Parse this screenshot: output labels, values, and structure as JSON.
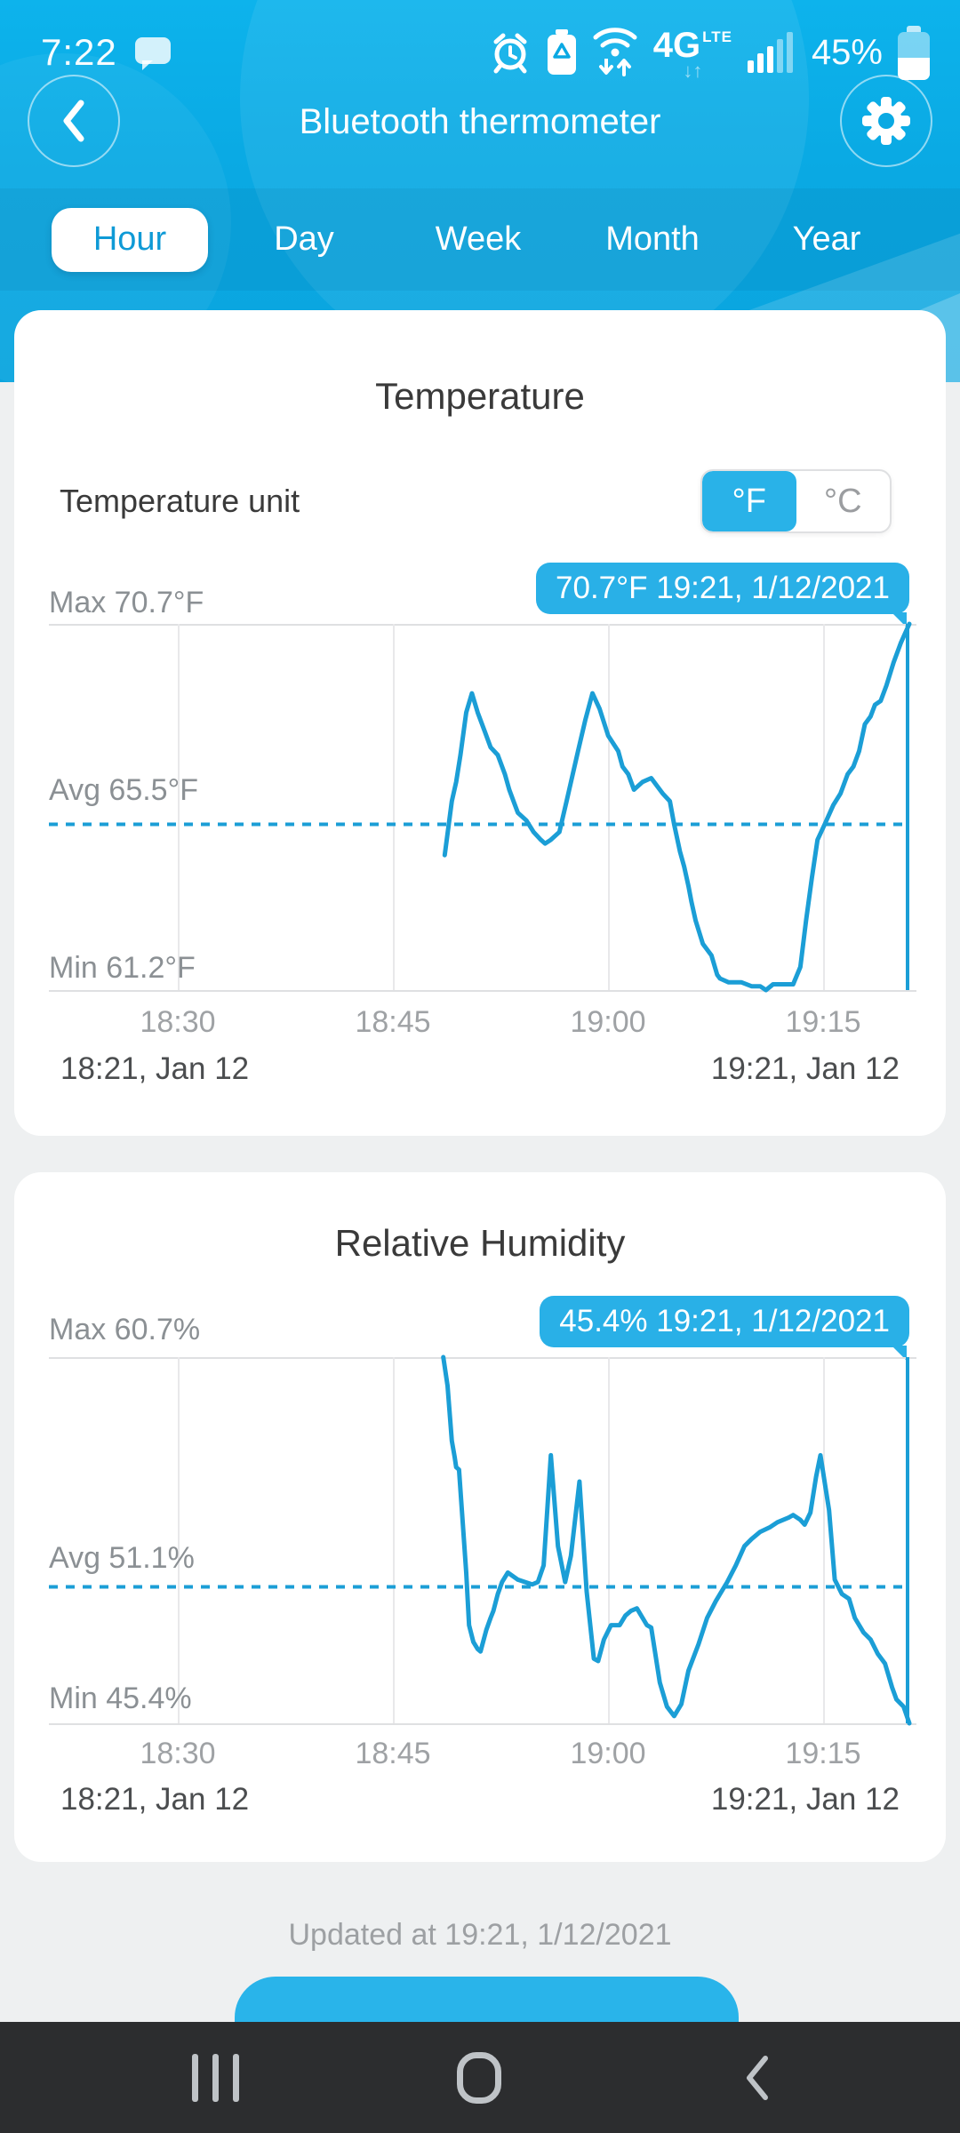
{
  "colors": {
    "hero_blue": "#0aa9e3",
    "accent_blue": "#29b2e8",
    "line_blue": "#1b9ed6",
    "active_tab_text": "#0f9ad6",
    "gridline": "#e8e8ea",
    "navbar_bg": "#2c2d2f"
  },
  "status_bar": {
    "time": "7:22",
    "battery_percent": "45%",
    "network_type": "4G",
    "network_sub": "LTE",
    "down_up_arrows": "↓↑",
    "icons": [
      "chat-bubble-icon",
      "alarm-icon",
      "battery-saver-icon",
      "wifi-icon",
      "4g-lte-icon",
      "signal-icon",
      "battery-icon"
    ]
  },
  "header": {
    "title": "Bluetooth thermometer"
  },
  "tabs": {
    "items": [
      {
        "label": "Hour",
        "active": true
      },
      {
        "label": "Day",
        "active": false
      },
      {
        "label": "Week",
        "active": false
      },
      {
        "label": "Month",
        "active": false
      },
      {
        "label": "Year",
        "active": false
      }
    ]
  },
  "temperature_card": {
    "title": "Temperature",
    "unit_label": "Temperature unit",
    "unit_toggle": {
      "fahrenheit": "°F",
      "celsius": "°C",
      "selected": "fahrenheit"
    },
    "tooltip": "70.7°F 19:21,  1/12/2021",
    "max_label": "Max 70.7°F",
    "avg_label": "Avg 65.5°F",
    "min_label": "Min 61.2°F",
    "x_ticks": [
      "18:30",
      "18:45",
      "19:00",
      "19:15"
    ],
    "range_start": "18:21,  Jan 12",
    "range_end": "19:21,  Jan 12"
  },
  "humidity_card": {
    "title": "Relative Humidity",
    "tooltip": "45.4% 19:21,  1/12/2021",
    "max_label": "Max 60.7%",
    "avg_label": "Avg 51.1%",
    "min_label": "Min 45.4%",
    "x_ticks": [
      "18:30",
      "18:45",
      "19:00",
      "19:15"
    ],
    "range_start": "18:21,  Jan 12",
    "range_end": "19:21,  Jan 12"
  },
  "footer": {
    "updated": "Updated at 19:21,  1/12/2021"
  },
  "nav_bar": {
    "icons": [
      "recents-icon",
      "home-icon",
      "back-icon"
    ]
  },
  "chart_data": [
    {
      "type": "line",
      "title": "Temperature",
      "unit": "°F",
      "ylim": [
        61.2,
        70.7
      ],
      "max": 70.7,
      "avg": 65.5,
      "min": 61.2,
      "latest": {
        "value": "70.7°F",
        "time": "19:21",
        "date": "1/12/2021"
      },
      "x_range_minutes": [
        0,
        60
      ],
      "x_start_label": "18:21, Jan 12",
      "x_end_label": "19:21, Jan 12",
      "tick_minutes": [
        9,
        24,
        39,
        54
      ],
      "tick_labels": [
        "18:30",
        "18:45",
        "19:00",
        "19:15"
      ],
      "grid": true,
      "legend": "none",
      "line_color": "#1b9ed6",
      "series": [
        {
          "name": "Temperature (°F)",
          "points": [
            [
              27.6,
              64.7
            ],
            [
              28.1,
              66.1
            ],
            [
              28.4,
              66.6
            ],
            [
              28.7,
              67.3
            ],
            [
              29.1,
              68.4
            ],
            [
              29.5,
              68.9
            ],
            [
              29.9,
              68.4
            ],
            [
              30.4,
              67.9
            ],
            [
              30.8,
              67.5
            ],
            [
              31.3,
              67.3
            ],
            [
              31.8,
              66.8
            ],
            [
              32.1,
              66.4
            ],
            [
              32.5,
              66.0
            ],
            [
              32.7,
              65.8
            ],
            [
              33.3,
              65.6
            ],
            [
              33.8,
              65.3
            ],
            [
              34.3,
              65.1
            ],
            [
              34.6,
              65.0
            ],
            [
              35.0,
              65.1
            ],
            [
              35.6,
              65.3
            ],
            [
              36.1,
              66.1
            ],
            [
              36.9,
              67.4
            ],
            [
              37.4,
              68.2
            ],
            [
              37.9,
              68.9
            ],
            [
              38.4,
              68.5
            ],
            [
              39.0,
              67.8
            ],
            [
              39.7,
              67.4
            ],
            [
              40.0,
              67.0
            ],
            [
              40.4,
              66.8
            ],
            [
              40.8,
              66.4
            ],
            [
              41.4,
              66.6
            ],
            [
              42.0,
              66.7
            ],
            [
              42.8,
              66.3
            ],
            [
              43.3,
              66.1
            ],
            [
              43.6,
              65.5
            ],
            [
              44.0,
              64.8
            ],
            [
              44.3,
              64.4
            ],
            [
              44.6,
              63.9
            ],
            [
              44.8,
              63.5
            ],
            [
              45.1,
              63.0
            ],
            [
              45.6,
              62.4
            ],
            [
              46.2,
              62.1
            ],
            [
              46.6,
              61.6
            ],
            [
              46.8,
              61.5
            ],
            [
              47.4,
              61.4
            ],
            [
              48.3,
              61.4
            ],
            [
              49.0,
              61.3
            ],
            [
              49.6,
              61.3
            ],
            [
              50.0,
              61.2
            ],
            [
              50.5,
              61.35
            ],
            [
              51.1,
              61.35
            ],
            [
              51.9,
              61.35
            ],
            [
              52.4,
              61.8
            ],
            [
              52.8,
              63.0
            ],
            [
              53.2,
              64.1
            ],
            [
              53.6,
              65.1
            ],
            [
              54.1,
              65.5
            ],
            [
              54.7,
              66.0
            ],
            [
              55.2,
              66.3
            ],
            [
              55.7,
              66.8
            ],
            [
              56.1,
              67.0
            ],
            [
              56.5,
              67.4
            ],
            [
              56.9,
              68.1
            ],
            [
              57.3,
              68.3
            ],
            [
              57.6,
              68.6
            ],
            [
              58.0,
              68.7
            ],
            [
              58.4,
              69.1
            ],
            [
              58.9,
              69.7
            ],
            [
              59.4,
              70.2
            ],
            [
              60,
              70.7
            ]
          ]
        }
      ]
    },
    {
      "type": "line",
      "title": "Relative Humidity",
      "unit": "%",
      "ylim": [
        45.4,
        60.7
      ],
      "max": 60.7,
      "avg": 51.1,
      "min": 45.4,
      "latest": {
        "value": "45.4%",
        "time": "19:21",
        "date": "1/12/2021"
      },
      "x_range_minutes": [
        0,
        60
      ],
      "x_start_label": "18:21, Jan 12",
      "x_end_label": "19:21, Jan 12",
      "tick_minutes": [
        9,
        24,
        39,
        54
      ],
      "tick_labels": [
        "18:30",
        "18:45",
        "19:00",
        "19:15"
      ],
      "grid": true,
      "legend": "none",
      "line_color": "#1b9ed6",
      "series": [
        {
          "name": "Relative Humidity (%)",
          "points": [
            [
              27.5,
              60.7
            ],
            [
              27.8,
              59.5
            ],
            [
              28.1,
              57.2
            ],
            [
              28.3,
              56.5
            ],
            [
              28.4,
              56.1
            ],
            [
              28.6,
              56.0
            ],
            [
              28.8,
              54.3
            ],
            [
              29.1,
              51.7
            ],
            [
              29.3,
              49.5
            ],
            [
              29.6,
              48.8
            ],
            [
              29.9,
              48.5
            ],
            [
              30.1,
              48.4
            ],
            [
              30.5,
              49.3
            ],
            [
              30.8,
              49.8
            ],
            [
              31.0,
              50.1
            ],
            [
              31.3,
              50.8
            ],
            [
              31.6,
              51.3
            ],
            [
              32.0,
              51.7
            ],
            [
              32.7,
              51.4
            ],
            [
              33.7,
              51.2
            ],
            [
              34.1,
              51.3
            ],
            [
              34.5,
              52.0
            ],
            [
              35.0,
              56.6
            ],
            [
              35.5,
              52.8
            ],
            [
              36.0,
              51.3
            ],
            [
              36.4,
              52.4
            ],
            [
              37.0,
              55.5
            ],
            [
              37.5,
              50.9
            ],
            [
              38.0,
              48.1
            ],
            [
              38.3,
              48.0
            ],
            [
              38.7,
              48.9
            ],
            [
              39.2,
              49.5
            ],
            [
              39.8,
              49.5
            ],
            [
              40.2,
              49.9
            ],
            [
              40.6,
              50.1
            ],
            [
              41.0,
              50.2
            ],
            [
              41.7,
              49.5
            ],
            [
              42.0,
              49.4
            ],
            [
              42.6,
              47.1
            ],
            [
              43.1,
              46.1
            ],
            [
              43.6,
              45.7
            ],
            [
              44.1,
              46.2
            ],
            [
              44.6,
              47.6
            ],
            [
              45.3,
              48.7
            ],
            [
              45.9,
              49.8
            ],
            [
              46.5,
              50.5
            ],
            [
              46.8,
              50.8
            ],
            [
              47.3,
              51.3
            ],
            [
              47.9,
              52.0
            ],
            [
              48.5,
              52.8
            ],
            [
              49.0,
              53.1
            ],
            [
              49.6,
              53.4
            ],
            [
              50.3,
              53.6
            ],
            [
              50.8,
              53.8
            ],
            [
              51.6,
              54.0
            ],
            [
              51.9,
              54.1
            ],
            [
              52.4,
              53.9
            ],
            [
              52.7,
              53.7
            ],
            [
              53.1,
              54.2
            ],
            [
              53.5,
              55.7
            ],
            [
              53.8,
              56.6
            ],
            [
              54.4,
              54.3
            ],
            [
              54.8,
              51.4
            ],
            [
              55.3,
              50.8
            ],
            [
              55.8,
              50.6
            ],
            [
              56.2,
              49.8
            ],
            [
              56.8,
              49.2
            ],
            [
              57.3,
              48.9
            ],
            [
              57.8,
              48.3
            ],
            [
              58.3,
              47.9
            ],
            [
              58.8,
              46.9
            ],
            [
              59.1,
              46.4
            ],
            [
              59.6,
              46.1
            ],
            [
              60,
              45.4
            ]
          ]
        }
      ]
    }
  ]
}
